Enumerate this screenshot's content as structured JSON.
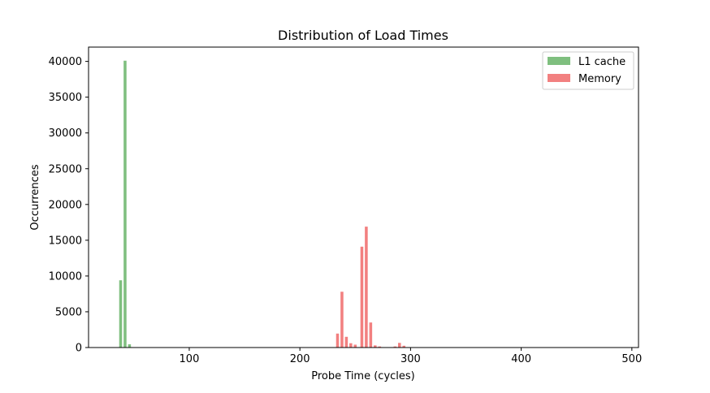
{
  "chart_data": {
    "type": "bar",
    "title": "Distribution of Load Times",
    "xlabel": "Probe Time (cycles)",
    "ylabel": "Occurrences",
    "xlim": [
      9,
      506
    ],
    "ylim": [
      0,
      42000
    ],
    "xticks": [
      100,
      200,
      300,
      400,
      500
    ],
    "yticks": [
      0,
      5000,
      10000,
      15000,
      20000,
      25000,
      30000,
      35000,
      40000
    ],
    "bar_width": 2.6,
    "grid": false,
    "legend_position": "top-right",
    "series": [
      {
        "name": "L1 cache",
        "color": "#7fbf7f",
        "points": [
          {
            "x": 38,
            "y": 9400
          },
          {
            "x": 42,
            "y": 40100
          },
          {
            "x": 46,
            "y": 450
          }
        ]
      },
      {
        "name": "Memory",
        "color": "#f28080",
        "points": [
          {
            "x": 234,
            "y": 1950
          },
          {
            "x": 238,
            "y": 7800
          },
          {
            "x": 242,
            "y": 1500
          },
          {
            "x": 246,
            "y": 600
          },
          {
            "x": 250,
            "y": 400
          },
          {
            "x": 256,
            "y": 14100
          },
          {
            "x": 260,
            "y": 16900
          },
          {
            "x": 264,
            "y": 3500
          },
          {
            "x": 268,
            "y": 300
          },
          {
            "x": 272,
            "y": 150
          },
          {
            "x": 286,
            "y": 150
          },
          {
            "x": 290,
            "y": 650
          },
          {
            "x": 294,
            "y": 250
          }
        ]
      }
    ]
  }
}
